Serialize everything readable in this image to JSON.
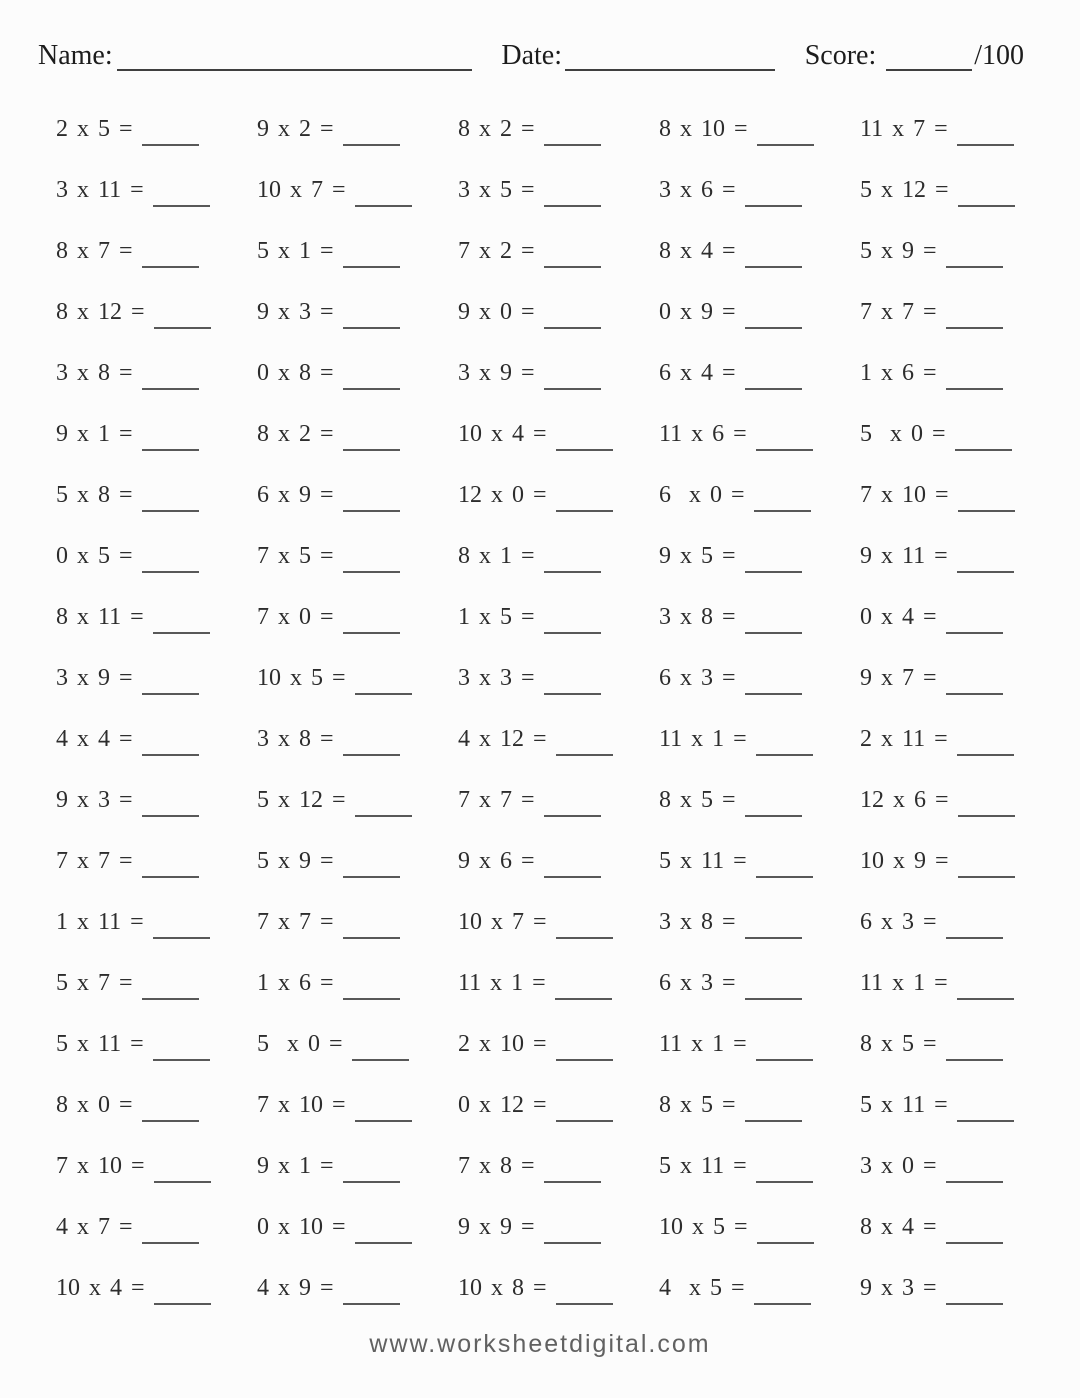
{
  "header": {
    "name_label": "Name:",
    "date_label": "Date:",
    "score_label": "Score:",
    "score_denominator": "/100"
  },
  "problems": [
    "2 x 5 =",
    "9 x 2 =",
    "8 x 2 =",
    "8 x 10 =",
    "11 x 7 =",
    "3 x 11 =",
    "10 x 7 =",
    "3 x 5 =",
    "3 x 6 =",
    "5 x 12 =",
    "8 x 7 =",
    "5 x 1 =",
    "7 x 2 =",
    "8 x 4 =",
    "5 x 9 =",
    "8 x 12 =",
    "9 x 3 =",
    "9 x 0 =",
    "0 x 9 =",
    "7 x 7 =",
    "3 x 8 =",
    "0 x 8 =",
    "3 x 9 =",
    "6 x 4 =",
    "1 x 6 =",
    "9 x 1 =",
    "8 x 2 =",
    "10 x 4 =",
    "11 x 6 =",
    "5  x 0 =",
    "5 x 8 =",
    "6 x 9 =",
    "12 x 0 =",
    "6  x 0 =",
    "7 x 10 =",
    "0 x 5 =",
    "7 x 5 =",
    "8 x 1 =",
    "9 x 5 =",
    "9 x 11 =",
    "8 x 11 =",
    "7 x 0 =",
    "1 x 5 =",
    "3 x 8 =",
    "0 x 4 =",
    "3 x 9 =",
    "10 x 5 =",
    "3 x 3 =",
    "6 x 3 =",
    "9 x 7 =",
    "4 x 4 =",
    "3 x 8 =",
    "4 x 12 =",
    "11 x 1 =",
    "2 x 11 =",
    "9 x 3 =",
    "5 x 12 =",
    "7 x 7 =",
    "8 x 5 =",
    "12 x 6 =",
    "7 x 7 =",
    "5 x 9 =",
    "9 x 6 =",
    "5 x 11 =",
    "10 x 9 =",
    "1 x 11 =",
    "7 x 7 =",
    "10 x 7 =",
    "3 x 8 =",
    "6 x 3 =",
    "5 x 7 =",
    "1 x 6 =",
    "11 x 1 =",
    "6 x 3 =",
    "11 x 1 =",
    "5 x 11 =",
    "5  x 0 =",
    "2 x 10 =",
    "11 x 1 =",
    "8 x 5 =",
    "8 x 0 =",
    "7 x 10 =",
    "0 x 12 =",
    "8 x 5 =",
    "5 x 11 =",
    "7 x 10 =",
    "9 x 1 =",
    "7 x 8 =",
    "5 x 11 =",
    "3 x 0 =",
    "4 x 7 =",
    "0 x 10 =",
    "9 x 9 =",
    "10 x 5 =",
    "8 x 4 =",
    "10 x 4 =",
    "4 x 9 =",
    "10 x 8 =",
    "4  x 5 =",
    "9 x 3 ="
  ],
  "footer": {
    "url": "www.worksheetdigital.com"
  },
  "colors": {
    "background": "#fcfcfc",
    "header_text": "#1c1c1c",
    "problem_text": "#2d2d2d",
    "answer_line": "#585858",
    "footer_text": "#616161"
  }
}
